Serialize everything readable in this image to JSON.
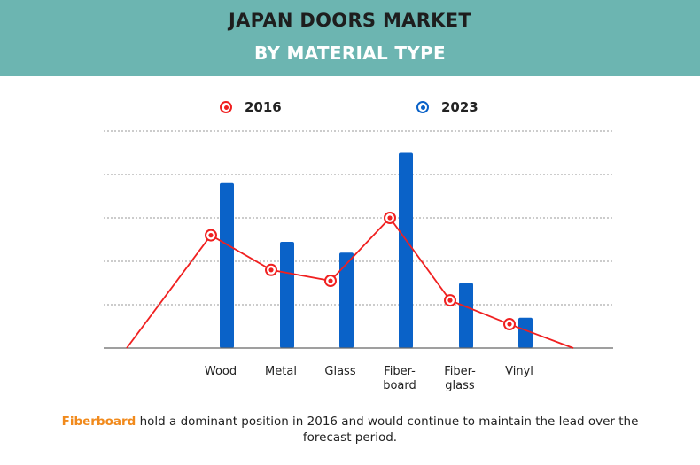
{
  "header": {
    "title": "JAPAN DOORS MARKET",
    "subtitle": "BY MATERIAL TYPE"
  },
  "colors": {
    "header_bg": "#6cb5b1",
    "line_2016": "#f02020",
    "bar_2023": "#0a62c8",
    "highlight": "#f18a1c"
  },
  "chart_data": {
    "type": "bar",
    "title": "JAPAN DOORS MARKET BY MATERIAL TYPE",
    "categories": [
      "Wood",
      "Metal",
      "Glass",
      "Fiber-board",
      "Fiber-glass",
      "Vinyl"
    ],
    "category_labels": [
      [
        "Wood"
      ],
      [
        "Metal"
      ],
      [
        "Glass"
      ],
      [
        "Fiber-",
        "board"
      ],
      [
        "Fiber-",
        "glass"
      ],
      [
        "Vinyl"
      ]
    ],
    "ylim": [
      0,
      5
    ],
    "grid": true,
    "legend_position": "top",
    "series": [
      {
        "name": "2016",
        "type": "line",
        "values": [
          2.6,
          1.8,
          1.55,
          3.0,
          1.1,
          0.55
        ],
        "line_start": 0,
        "line_end": 0
      },
      {
        "name": "2023",
        "type": "bar",
        "values": [
          3.8,
          2.45,
          2.2,
          4.5,
          1.5,
          0.7
        ]
      }
    ]
  },
  "footer": {
    "highlight": "Fiberboard",
    "text": " hold a dominant position in 2016 and would continue to maintain the lead over the forecast period."
  }
}
